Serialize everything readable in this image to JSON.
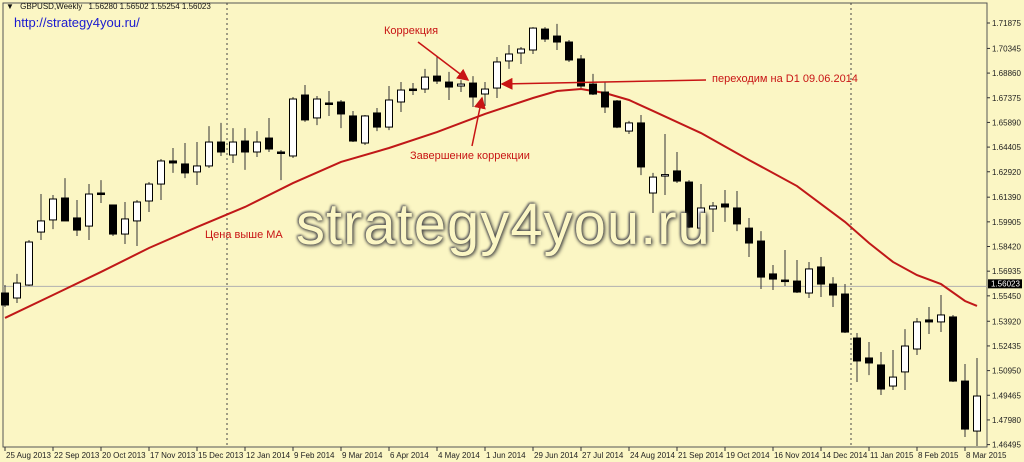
{
  "header": {
    "arrow": "▼",
    "symbol": "GBPUSD,Weekly",
    "ohlc": "1.56280 1.56502 1.55254 1.56023"
  },
  "link": "http://strategy4you.ru/",
  "watermark": "strategy4you.ru",
  "annotations": {
    "correction": "Коррекция",
    "correction_end": "Завершение коррекции",
    "switch_d1": "переходим на D1 09.06.2014",
    "price_above_ma": "Цена выше МА"
  },
  "colors": {
    "background": "#fbf6c4",
    "bull": "#ffffff",
    "bear": "#000000",
    "ma": "#c01818",
    "annotation": "#c81414",
    "bid_line": "#b0b0b0"
  },
  "chart_data": {
    "type": "candlestick",
    "symbol": "GBPUSD",
    "timeframe": "Weekly",
    "ylim": [
      1.46495,
      1.71875
    ],
    "y_ticks": [
      "1.71875",
      "1.70345",
      "1.68860",
      "1.67375",
      "1.65890",
      "1.64405",
      "1.62920",
      "1.61390",
      "1.59905",
      "1.58420",
      "1.56935",
      "1.55450",
      "1.53920",
      "1.52435",
      "1.50950",
      "1.49465",
      "1.47980",
      "1.46495"
    ],
    "x_ticks": [
      "25 Aug 2013",
      "22 Sep 2013",
      "20 Oct 2013",
      "17 Nov 2013",
      "15 Dec 2013",
      "12 Jan 2014",
      "9 Feb 2014",
      "9 Mar 2014",
      "6 Apr 2014",
      "4 May 2014",
      "1 Jun 2014",
      "29 Jun 2014",
      "27 Jul 2014",
      "24 Aug 2014",
      "21 Sep 2014",
      "19 Oct 2014",
      "16 Nov 2014",
      "14 Dec 2014",
      "11 Jan 2015",
      "8 Feb 2015",
      "8 Mar 2015"
    ],
    "x_tick_every_bars": 4,
    "bid": 1.56023,
    "candles_ohlc": [
      [
        1.5562,
        1.561,
        1.5478,
        1.549
      ],
      [
        1.5532,
        1.5677,
        1.5502,
        1.5622
      ],
      [
        1.561,
        1.5881,
        1.5604,
        1.5869
      ],
      [
        1.5929,
        1.6158,
        1.5881,
        1.5996
      ],
      [
        1.6002,
        1.6152,
        1.5947,
        1.6128
      ],
      [
        1.6134,
        1.6254,
        1.5996,
        1.5996
      ],
      [
        1.6014,
        1.6122,
        1.5905,
        1.5941
      ],
      [
        1.5965,
        1.6218,
        1.5881,
        1.6158
      ],
      [
        1.6164,
        1.6242,
        1.6104,
        1.6158
      ],
      [
        1.6092,
        1.6092,
        1.5905,
        1.5917
      ],
      [
        1.5917,
        1.611,
        1.5857,
        1.6008
      ],
      [
        1.5996,
        1.6122,
        1.5845,
        1.611
      ],
      [
        1.6116,
        1.623,
        1.605,
        1.6218
      ],
      [
        1.6218,
        1.6369,
        1.6122,
        1.6357
      ],
      [
        1.6357,
        1.6435,
        1.6285,
        1.6345
      ],
      [
        1.6339,
        1.6465,
        1.6254,
        1.6285
      ],
      [
        1.6291,
        1.6471,
        1.6212,
        1.6327
      ],
      [
        1.6327,
        1.6567,
        1.6315,
        1.6471
      ],
      [
        1.6471,
        1.6586,
        1.6387,
        1.6411
      ],
      [
        1.6393,
        1.6555,
        1.6345,
        1.6471
      ],
      [
        1.6477,
        1.6555,
        1.6303,
        1.6411
      ],
      [
        1.6411,
        1.6537,
        1.6381,
        1.6471
      ],
      [
        1.6495,
        1.6616,
        1.6411,
        1.6429
      ],
      [
        1.6411,
        1.6423,
        1.6242,
        1.6405
      ],
      [
        1.6387,
        1.6742,
        1.6375,
        1.673
      ],
      [
        1.6754,
        1.6814,
        1.6592,
        1.6604
      ],
      [
        1.6616,
        1.6748,
        1.6573,
        1.673
      ],
      [
        1.6706,
        1.6778,
        1.6628,
        1.6703
      ],
      [
        1.6712,
        1.6724,
        1.6555,
        1.664
      ],
      [
        1.6628,
        1.6658,
        1.6471,
        1.6477
      ],
      [
        1.6465,
        1.6634,
        1.6453,
        1.6628
      ],
      [
        1.6646,
        1.6676,
        1.6537,
        1.6561
      ],
      [
        1.6561,
        1.6808,
        1.6543,
        1.6724
      ],
      [
        1.6712,
        1.6832,
        1.6652,
        1.6784
      ],
      [
        1.679,
        1.6826,
        1.6754,
        1.6784
      ],
      [
        1.679,
        1.6911,
        1.6766,
        1.6862
      ],
      [
        1.6868,
        1.6989,
        1.682,
        1.6838
      ],
      [
        1.6832,
        1.6893,
        1.6724,
        1.6802
      ],
      [
        1.6808,
        1.6844,
        1.6772,
        1.682
      ],
      [
        1.6826,
        1.6868,
        1.6682,
        1.6742
      ],
      [
        1.676,
        1.6832,
        1.6688,
        1.679
      ],
      [
        1.6796,
        1.6983,
        1.6736,
        1.6953
      ],
      [
        1.6959,
        1.7055,
        1.6911,
        1.7001
      ],
      [
        1.7007,
        1.7043,
        1.6941,
        1.7031
      ],
      [
        1.7025,
        1.7163,
        1.7001,
        1.7157
      ],
      [
        1.7151,
        1.7163,
        1.7073,
        1.7091
      ],
      [
        1.7109,
        1.7182,
        1.7025,
        1.7073
      ],
      [
        1.7073,
        1.7085,
        1.6953,
        1.6965
      ],
      [
        1.6971,
        1.6995,
        1.6796,
        1.6808
      ],
      [
        1.682,
        1.6881,
        1.6754,
        1.676
      ],
      [
        1.6772,
        1.6832,
        1.6646,
        1.6682
      ],
      [
        1.6718,
        1.6724,
        1.6555,
        1.6561
      ],
      [
        1.6537,
        1.6598,
        1.6519,
        1.6586
      ],
      [
        1.6586,
        1.6634,
        1.6272,
        1.6321
      ],
      [
        1.6164,
        1.6285,
        1.6044,
        1.626
      ],
      [
        1.6272,
        1.6519,
        1.6152,
        1.6275
      ],
      [
        1.6297,
        1.6411,
        1.6224,
        1.6236
      ],
      [
        1.623,
        1.6242,
        1.5953,
        1.5959
      ],
      [
        1.5953,
        1.6218,
        1.5941,
        1.6074
      ],
      [
        1.6068,
        1.611,
        1.5929,
        1.6086
      ],
      [
        1.6098,
        1.6182,
        1.599,
        1.608
      ],
      [
        1.6074,
        1.6176,
        1.5935,
        1.5978
      ],
      [
        1.5953,
        1.6014,
        1.5779,
        1.5863
      ],
      [
        1.5875,
        1.5935,
        1.5586,
        1.5658
      ],
      [
        1.5677,
        1.5731,
        1.558,
        1.5646
      ],
      [
        1.564,
        1.5821,
        1.5604,
        1.5634
      ],
      [
        1.5634,
        1.5761,
        1.5562,
        1.5568
      ],
      [
        1.5562,
        1.5749,
        1.5532,
        1.5707
      ],
      [
        1.5719,
        1.5779,
        1.5538,
        1.5616
      ],
      [
        1.5616,
        1.5658,
        1.5478,
        1.555
      ],
      [
        1.5556,
        1.5616,
        1.5321,
        1.5327
      ],
      [
        1.5291,
        1.5321,
        1.5026,
        1.5153
      ],
      [
        1.5171,
        1.5267,
        1.5068,
        1.5141
      ],
      [
        1.5129,
        1.5207,
        1.4948,
        1.4984
      ],
      [
        1.5002,
        1.5219,
        1.4978,
        1.5056
      ],
      [
        1.5087,
        1.5345,
        1.4978,
        1.5243
      ],
      [
        1.5225,
        1.5412,
        1.5189,
        1.5388
      ],
      [
        1.54,
        1.5478,
        1.5315,
        1.5388
      ],
      [
        1.5388,
        1.555,
        1.5327,
        1.543
      ],
      [
        1.5418,
        1.543,
        1.5026,
        1.5032
      ],
      [
        1.5032,
        1.5135,
        1.4695,
        1.4743
      ],
      [
        1.4731,
        1.5171,
        1.4641,
        1.4942
      ]
    ],
    "ma_line": [
      [
        0,
        1.5412
      ],
      [
        4,
        1.555
      ],
      [
        8,
        1.5689
      ],
      [
        12,
        1.5833
      ],
      [
        16,
        1.5959
      ],
      [
        20,
        1.608
      ],
      [
        24,
        1.6224
      ],
      [
        28,
        1.6351
      ],
      [
        32,
        1.6435
      ],
      [
        36,
        1.6531
      ],
      [
        40,
        1.664
      ],
      [
        44,
        1.6736
      ],
      [
        46,
        1.6778
      ],
      [
        48,
        1.679
      ],
      [
        50,
        1.6766
      ],
      [
        52,
        1.6724
      ],
      [
        54,
        1.6658
      ],
      [
        58,
        1.6525
      ],
      [
        62,
        1.6363
      ],
      [
        66,
        1.6206
      ],
      [
        70,
        1.599
      ],
      [
        72,
        1.5863
      ],
      [
        74,
        1.5749
      ],
      [
        76,
        1.567
      ],
      [
        78,
        1.5616
      ],
      [
        80,
        1.5514
      ],
      [
        81,
        1.5484
      ]
    ],
    "period_separators_bars": [
      19,
      71
    ]
  }
}
